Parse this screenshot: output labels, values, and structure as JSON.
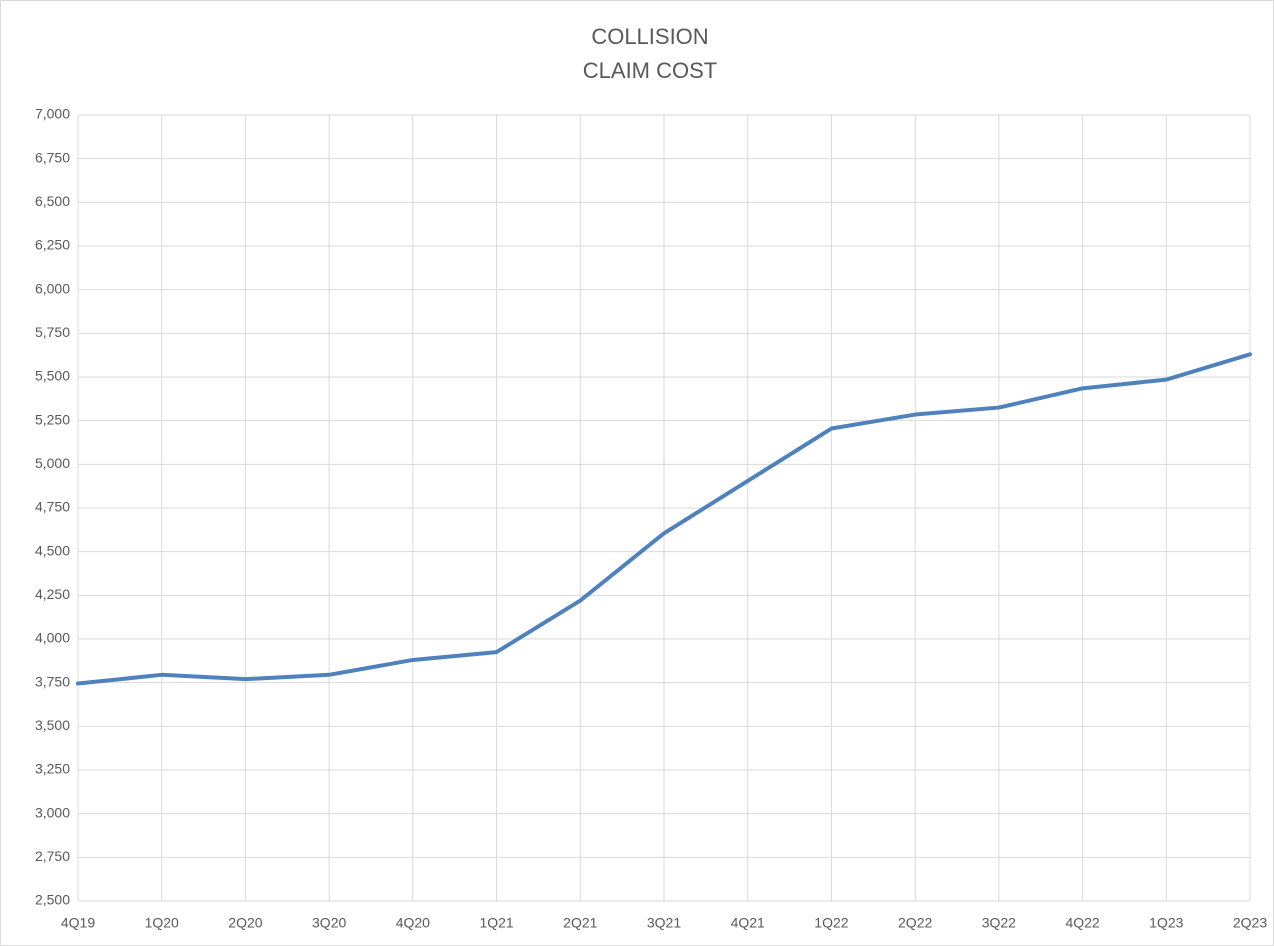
{
  "chart_data": {
    "type": "line",
    "title": [
      "COLLISION",
      "CLAIM COST"
    ],
    "categories": [
      "4Q19",
      "1Q20",
      "2Q20",
      "3Q20",
      "4Q20",
      "1Q21",
      "2Q21",
      "3Q21",
      "4Q21",
      "1Q22",
      "2Q22",
      "3Q22",
      "4Q22",
      "1Q23",
      "2Q23"
    ],
    "series": [
      {
        "color": "#4f81bd",
        "values": [
          3745,
          3795,
          3770,
          3795,
          3880,
          3925,
          4220,
          4605,
          4905,
          5205,
          5285,
          5325,
          5435,
          5485,
          5630
        ]
      }
    ],
    "ylim": [
      2500,
      7000
    ],
    "yticks": [
      {
        "value": 2500,
        "label": "2,500"
      },
      {
        "value": 2750,
        "label": "2,750"
      },
      {
        "value": 3000,
        "label": "3,000"
      },
      {
        "value": 3250,
        "label": "3,250"
      },
      {
        "value": 3500,
        "label": "3,500"
      },
      {
        "value": 3750,
        "label": "3,750"
      },
      {
        "value": 4000,
        "label": "4,000"
      },
      {
        "value": 4250,
        "label": "4,250"
      },
      {
        "value": 4500,
        "label": "4,500"
      },
      {
        "value": 4750,
        "label": "4,750"
      },
      {
        "value": 5000,
        "label": "5,000"
      },
      {
        "value": 5250,
        "label": "5,250"
      },
      {
        "value": 5500,
        "label": "5,500"
      },
      {
        "value": 5750,
        "label": "5,750"
      },
      {
        "value": 6000,
        "label": "6,000"
      },
      {
        "value": 6250,
        "label": "6,250"
      },
      {
        "value": 6500,
        "label": "6,500"
      },
      {
        "value": 6750,
        "label": "6,750"
      },
      {
        "value": 7000,
        "label": "7,000"
      }
    ],
    "grid": true
  }
}
